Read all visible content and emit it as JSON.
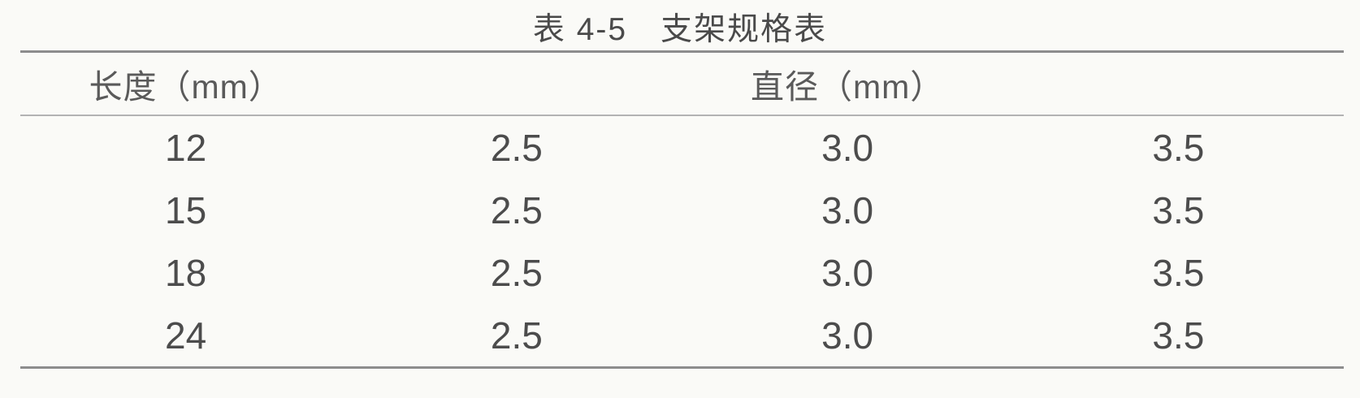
{
  "page": {
    "background_color": "#fafaf7",
    "text_color": "#4c4c4c",
    "rule_color_heavy": "#8d8d8d",
    "rule_color_light": "#b3b3b3"
  },
  "table": {
    "title": "表 4-5　支架规格表",
    "headers": {
      "length": "长度（mm）",
      "diameter": "直径（mm）"
    },
    "rows": [
      [
        "12",
        "2.5",
        "3.0",
        "3.5"
      ],
      [
        "15",
        "2.5",
        "3.0",
        "3.5"
      ],
      [
        "18",
        "2.5",
        "3.0",
        "3.5"
      ],
      [
        "24",
        "2.5",
        "3.0",
        "3.5"
      ]
    ]
  }
}
